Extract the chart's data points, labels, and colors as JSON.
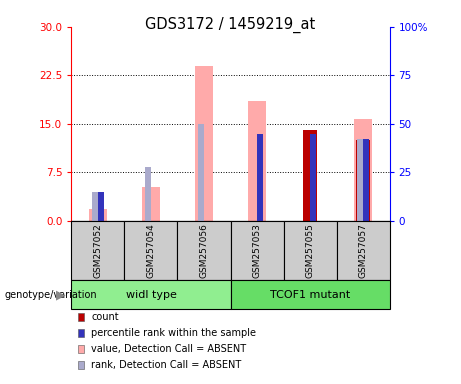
{
  "title": "GDS3172 / 1459219_at",
  "samples": [
    "GSM257052",
    "GSM257054",
    "GSM257056",
    "GSM257053",
    "GSM257055",
    "GSM257057"
  ],
  "group1_label": "widl type",
  "group1_color": "#90EE90",
  "group2_label": "TCOF1 mutant",
  "group2_color": "#66DD66",
  "count_values": [
    0,
    0,
    0,
    0,
    14.0,
    12.5
  ],
  "rank_values_pct": [
    15,
    0,
    0,
    45,
    45,
    42
  ],
  "absent_value_values": [
    1.8,
    5.2,
    24.0,
    18.5,
    0,
    15.8
  ],
  "absent_rank_pct": [
    15,
    28,
    50,
    0,
    0,
    42
  ],
  "ylim_left": [
    0,
    30
  ],
  "ylim_right": [
    0,
    100
  ],
  "yticks_left": [
    0,
    7.5,
    15,
    22.5,
    30
  ],
  "yticks_right": [
    0,
    25,
    50,
    75,
    100
  ],
  "absent_value_bar_width": 0.35,
  "absent_rank_bar_width": 0.12,
  "count_bar_width": 0.25,
  "rank_bar_width": 0.12,
  "count_color": "#BB0000",
  "rank_color": "#3333BB",
  "absent_value_color": "#FFAAAA",
  "absent_rank_color": "#AAAACC",
  "legend_items": [
    {
      "label": "count",
      "color": "#BB0000"
    },
    {
      "label": "percentile rank within the sample",
      "color": "#3333BB"
    },
    {
      "label": "value, Detection Call = ABSENT",
      "color": "#FFAAAA"
    },
    {
      "label": "rank, Detection Call = ABSENT",
      "color": "#AAAACC"
    }
  ]
}
